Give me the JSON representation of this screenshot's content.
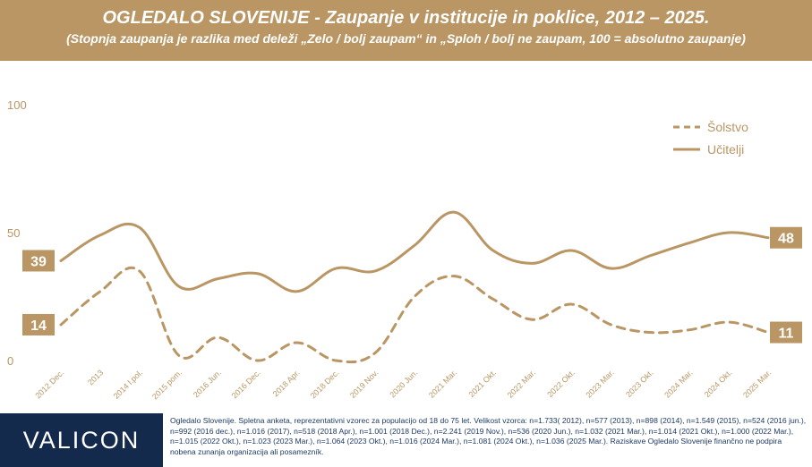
{
  "header": {
    "title": "OGLEDALO SLOVENIJE - Zaupanje v institucije in poklice, 2012 – 2025.",
    "subtitle": "(Stopnja zaupanja je razlika med deleži „Zelo / bolj zaupam“ in „Sploh / bolj ne zaupam, 100 = absolutno zaupanje)"
  },
  "colors": {
    "accent": "#b99663",
    "brand_navy": "#142a4c",
    "footnote_text": "#1d3a66"
  },
  "chart_data": {
    "type": "line",
    "categories": [
      "2012 Dec.",
      "2013",
      "2014 l.pol.",
      "2015 pom.",
      "2016 Jun.",
      "2016 Dec.",
      "2018 Apr.",
      "2018 Dec.",
      "2019 Nov.",
      "2020 Jun.",
      "2021 Mar.",
      "2021 Okt.",
      "2022 Mar.",
      "2022 Okt.",
      "2023 Mar.",
      "2023 Okt.",
      "2024 Mar.",
      "2024 Okt.",
      "2025 Mar."
    ],
    "series": [
      {
        "name": "Šolstvo",
        "style": "dashed",
        "values": [
          14,
          27,
          35,
          2,
          9,
          0,
          7,
          0,
          3,
          25,
          33,
          24,
          16,
          22,
          14,
          11,
          12,
          15,
          11
        ]
      },
      {
        "name": "Učitelji",
        "style": "solid",
        "values": [
          39,
          49,
          52,
          29,
          32,
          34,
          27,
          36,
          35,
          45,
          58,
          43,
          38,
          43,
          36,
          41,
          46,
          50,
          48
        ]
      }
    ],
    "yticks": [
      0,
      50,
      100
    ],
    "ylim": [
      0,
      100
    ],
    "end_labels": {
      "first": {
        "Šolstvo": "14",
        "Učitelji": "39"
      },
      "last": {
        "Šolstvo": "11",
        "Učitelji": "48"
      }
    },
    "legend_position": "top-right",
    "grid": false
  },
  "footer": {
    "logo": "VALICON",
    "note": "Ogledalo Slovenije. Spletna anketa, reprezentativni vzorec za populacijo od 18 do 75 let. Velikost vzorca: n=1.733( 2012), n=577 (2013), n=898 (2014), n=1.549 (2015), n=524 (2016 jun.), n=992 (2016 dec.), n=1.016 (2017), n=518 (2018 Apr.), n=1.001 (2018 Dec.), n=2.241 (2019 Nov.), n=536 (2020 Jun.), n=1.032 (2021 Mar.), n=1.014 (2021 Okt.), n=1.000 (2022 Mar.), n=1.015 (2022 Okt.), n=1.023 (2023 Mar.), n=1.064 (2023 Okt.), n=1.016 (2024 Mar.), n=1.081 (2024 Okt.), n=1.036 (2025 Mar.). Raziskave Ogledalo Slovenije finančno ne podpira nobena zunanja organizacija ali posamezník."
  }
}
